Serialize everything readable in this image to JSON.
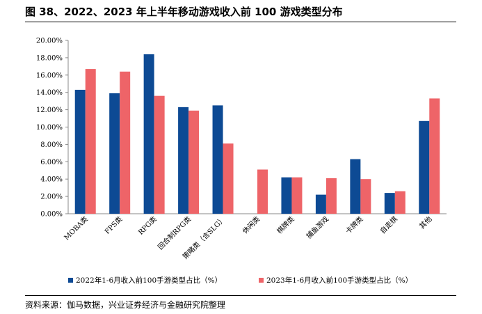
{
  "title": "图 38、2022、2023 年上半年移动游戏收入前 100 游戏类型分布",
  "source": "资料来源：伽马数据，兴业证券经济与金融研究院整理",
  "chart_data": {
    "type": "bar",
    "categories": [
      "MOBA类",
      "FPS类",
      "RPG类",
      "回合制RPG类",
      "策略类（含SLG）",
      "休闲类",
      "棋牌类",
      "捕鱼游戏",
      "卡牌类",
      "自走棋",
      "其他"
    ],
    "series": [
      {
        "name": "2022年1-6月收入前100手游类型占比（%）",
        "color": "#0d4a94",
        "values": [
          14.3,
          13.9,
          18.4,
          12.3,
          12.5,
          0.0,
          4.2,
          2.2,
          6.3,
          2.4,
          10.7
        ]
      },
      {
        "name": "2023年1-6月收入前100手游类型占比（%）",
        "color": "#ee6468",
        "values": [
          16.7,
          16.4,
          13.6,
          11.9,
          8.1,
          5.1,
          4.2,
          4.1,
          4.0,
          2.6,
          13.3
        ]
      }
    ],
    "y_ticks": [
      "0.00%",
      "2.00%",
      "4.00%",
      "6.00%",
      "8.00%",
      "10.00%",
      "12.00%",
      "14.00%",
      "16.00%",
      "18.00%",
      "20.00%"
    ],
    "ylim": [
      0,
      20
    ],
    "grid": false,
    "legend_position": "bottom"
  }
}
